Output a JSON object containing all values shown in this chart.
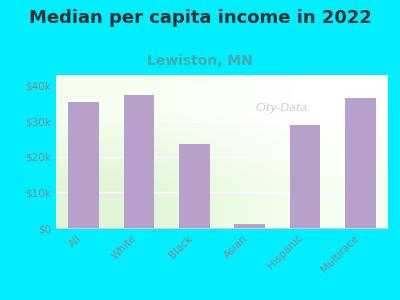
{
  "title": "Median per capita income in 2022",
  "subtitle": "Lewiston, MN",
  "categories": [
    "All",
    "White",
    "Black",
    "Asian",
    "Hispanic",
    "Multirace"
  ],
  "values": [
    35500,
    37500,
    23500,
    1200,
    29000,
    36500
  ],
  "bar_color": "#b8a0cc",
  "background_color": "#00eeff",
  "title_color": "#333333",
  "title_fontsize": 13,
  "subtitle_fontsize": 10,
  "subtitle_color": "#44aaaa",
  "tick_color": "#888888",
  "ylabel_ticks": [
    "$0",
    "$10k",
    "$20k",
    "$30k",
    "$40k"
  ],
  "ytick_values": [
    0,
    10000,
    20000,
    30000,
    40000
  ],
  "ylim": [
    0,
    43000
  ],
  "watermark": "City-Data.",
  "watermark_color": "#aaaacc"
}
